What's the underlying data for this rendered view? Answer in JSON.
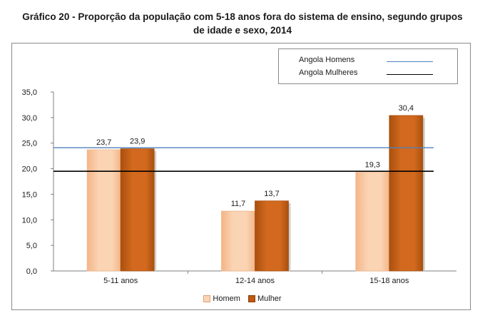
{
  "chart_data": {
    "type": "bar",
    "title_line1": "Gráfico 20 - Proporção da população com 5-18 anos fora do sistema de ensino, segundo grupos",
    "title_line2": "de idade e sexo, 2014",
    "categories": [
      "5-11 anos",
      "12-14 anos",
      "15-18 anos"
    ],
    "series": [
      {
        "name": "Homem",
        "values": [
          23.7,
          11.7,
          19.3
        ],
        "value_labels": [
          "23,7",
          "11,7",
          "19,3"
        ],
        "color": "#fbd4b4",
        "color_dark": "#f3b588"
      },
      {
        "name": "Mulher",
        "values": [
          23.9,
          13.7,
          30.4
        ],
        "value_labels": [
          "23,9",
          "13,7",
          "30,4"
        ],
        "color": "#d2691e",
        "color_dark": "#a9500f"
      }
    ],
    "reference_lines": [
      {
        "name": "Angola Homens",
        "value": 24.1,
        "color": "#4f81bd"
      },
      {
        "name": "Angola Mulheres",
        "value": 19.5,
        "color": "#000000"
      }
    ],
    "ylim": [
      0,
      35
    ],
    "yticks": [
      0,
      5,
      10,
      15,
      20,
      25,
      30,
      35
    ],
    "ytick_labels": [
      "0,0",
      "5,0",
      "10,0",
      "15,0",
      "20,0",
      "25,0",
      "30,0",
      "35,0"
    ],
    "xlabel": "",
    "ylabel": "",
    "grid": false,
    "legend_position": "bottom"
  }
}
